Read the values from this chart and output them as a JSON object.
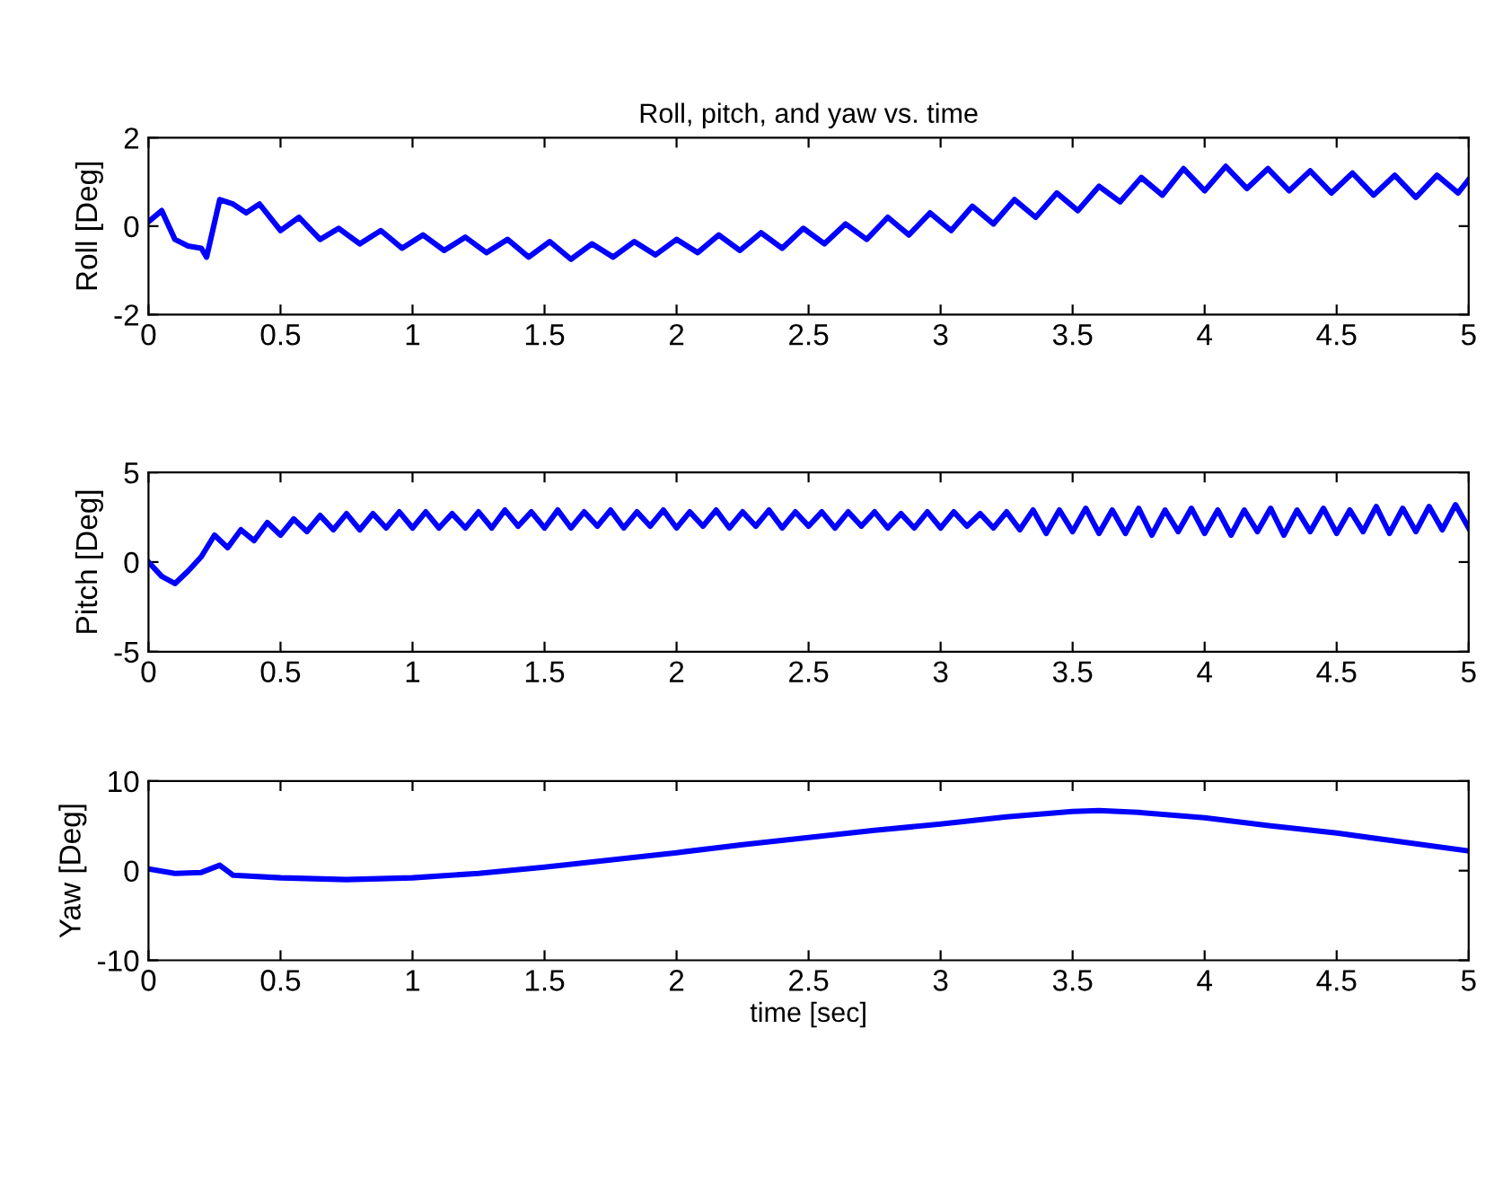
{
  "chart_data": [
    {
      "type": "line",
      "title": "Roll, pitch, and yaw vs. time",
      "ylabel": "Roll [Deg]",
      "xlim": [
        0,
        5
      ],
      "xticks": [
        0,
        0.5,
        1,
        1.5,
        2,
        2.5,
        3,
        3.5,
        4,
        4.5,
        5
      ],
      "ylim": [
        -2,
        2
      ],
      "yticks": [
        -2,
        0,
        2
      ],
      "grid": false,
      "legend": false,
      "series": [
        {
          "color": "#0000ff",
          "x": [
            0,
            0.05,
            0.1,
            0.15,
            0.2,
            0.22,
            0.27,
            0.32,
            0.37,
            0.42,
            0.5,
            0.57,
            0.65,
            0.72,
            0.8,
            0.88,
            0.96,
            1.04,
            1.12,
            1.2,
            1.28,
            1.36,
            1.44,
            1.52,
            1.6,
            1.68,
            1.76,
            1.84,
            1.92,
            2.0,
            2.08,
            2.16,
            2.24,
            2.32,
            2.4,
            2.48,
            2.56,
            2.64,
            2.72,
            2.8,
            2.88,
            2.96,
            3.04,
            3.12,
            3.2,
            3.28,
            3.36,
            3.44,
            3.52,
            3.6,
            3.68,
            3.76,
            3.84,
            3.92,
            4.0,
            4.08,
            4.16,
            4.24,
            4.32,
            4.4,
            4.48,
            4.56,
            4.64,
            4.72,
            4.8,
            4.88,
            4.96,
            5.0
          ],
          "values": [
            0.1,
            0.35,
            -0.3,
            -0.45,
            -0.5,
            -0.7,
            0.6,
            0.5,
            0.3,
            0.5,
            -0.1,
            0.2,
            -0.3,
            -0.05,
            -0.4,
            -0.1,
            -0.5,
            -0.2,
            -0.55,
            -0.25,
            -0.6,
            -0.3,
            -0.7,
            -0.35,
            -0.75,
            -0.4,
            -0.7,
            -0.35,
            -0.65,
            -0.3,
            -0.6,
            -0.2,
            -0.55,
            -0.15,
            -0.5,
            -0.05,
            -0.4,
            0.05,
            -0.3,
            0.2,
            -0.2,
            0.3,
            -0.1,
            0.45,
            0.05,
            0.6,
            0.2,
            0.75,
            0.35,
            0.9,
            0.55,
            1.1,
            0.7,
            1.3,
            0.8,
            1.35,
            0.85,
            1.3,
            0.8,
            1.25,
            0.75,
            1.2,
            0.7,
            1.15,
            0.65,
            1.15,
            0.75,
            1.05
          ]
        }
      ]
    },
    {
      "type": "line",
      "ylabel": "Pitch [Deg]",
      "xlim": [
        0,
        5
      ],
      "xticks": [
        0,
        0.5,
        1,
        1.5,
        2,
        2.5,
        3,
        3.5,
        4,
        4.5,
        5
      ],
      "ylim": [
        -5,
        5
      ],
      "yticks": [
        -5,
        0,
        5
      ],
      "grid": false,
      "legend": false,
      "series": [
        {
          "color": "#0000ff",
          "x": [
            0,
            0.05,
            0.1,
            0.15,
            0.2,
            0.25,
            0.3,
            0.35,
            0.4,
            0.45,
            0.5,
            0.55,
            0.6,
            0.65,
            0.7,
            0.75,
            0.8,
            0.85,
            0.9,
            0.95,
            1.0,
            1.05,
            1.1,
            1.15,
            1.2,
            1.25,
            1.3,
            1.35,
            1.4,
            1.45,
            1.5,
            1.55,
            1.6,
            1.65,
            1.7,
            1.75,
            1.8,
            1.85,
            1.9,
            1.95,
            2.0,
            2.05,
            2.1,
            2.15,
            2.2,
            2.25,
            2.3,
            2.35,
            2.4,
            2.45,
            2.5,
            2.55,
            2.6,
            2.65,
            2.7,
            2.75,
            2.8,
            2.85,
            2.9,
            2.95,
            3.0,
            3.05,
            3.1,
            3.15,
            3.2,
            3.25,
            3.3,
            3.35,
            3.4,
            3.45,
            3.5,
            3.55,
            3.6,
            3.65,
            3.7,
            3.75,
            3.8,
            3.85,
            3.9,
            3.95,
            4.0,
            4.05,
            4.1,
            4.15,
            4.2,
            4.25,
            4.3,
            4.35,
            4.4,
            4.45,
            4.5,
            4.55,
            4.6,
            4.65,
            4.7,
            4.75,
            4.8,
            4.85,
            4.9,
            4.95,
            5.0
          ],
          "values": [
            0,
            -0.8,
            -1.2,
            -0.5,
            0.3,
            1.5,
            0.8,
            1.8,
            1.2,
            2.2,
            1.5,
            2.4,
            1.7,
            2.6,
            1.8,
            2.7,
            1.8,
            2.7,
            1.9,
            2.8,
            1.9,
            2.8,
            1.9,
            2.7,
            1.9,
            2.8,
            1.9,
            2.9,
            2.0,
            2.8,
            1.9,
            2.9,
            1.9,
            2.8,
            2.0,
            2.9,
            1.9,
            2.8,
            2.0,
            2.9,
            1.9,
            2.8,
            2.0,
            2.9,
            1.9,
            2.8,
            2.0,
            2.9,
            1.9,
            2.8,
            2.0,
            2.8,
            1.9,
            2.8,
            2.0,
            2.8,
            1.9,
            2.7,
            1.9,
            2.8,
            1.9,
            2.8,
            2.0,
            2.7,
            1.9,
            2.8,
            1.8,
            2.9,
            1.6,
            2.9,
            1.7,
            3.0,
            1.6,
            2.9,
            1.6,
            3.0,
            1.5,
            2.9,
            1.7,
            3.0,
            1.6,
            2.9,
            1.5,
            2.9,
            1.7,
            3.0,
            1.5,
            2.9,
            1.7,
            3.0,
            1.6,
            2.9,
            1.7,
            3.1,
            1.6,
            3.0,
            1.7,
            3.1,
            1.8,
            3.2,
            1.9
          ]
        }
      ]
    },
    {
      "type": "line",
      "xlabel": "time [sec]",
      "ylabel": "Yaw [Deg]",
      "xlim": [
        0,
        5
      ],
      "xticks": [
        0,
        0.5,
        1,
        1.5,
        2,
        2.5,
        3,
        3.5,
        4,
        4.5,
        5
      ],
      "ylim": [
        -10,
        10
      ],
      "yticks": [
        -10,
        0,
        10
      ],
      "grid": false,
      "legend": false,
      "series": [
        {
          "color": "#0000ff",
          "x": [
            0,
            0.1,
            0.2,
            0.27,
            0.32,
            0.5,
            0.75,
            1.0,
            1.25,
            1.5,
            1.75,
            2.0,
            2.25,
            2.5,
            2.75,
            3.0,
            3.25,
            3.5,
            3.6,
            3.75,
            4.0,
            4.25,
            4.5,
            4.75,
            5.0
          ],
          "values": [
            0.2,
            -0.3,
            -0.2,
            0.6,
            -0.5,
            -0.8,
            -1.0,
            -0.8,
            -0.3,
            0.4,
            1.2,
            2.0,
            2.9,
            3.7,
            4.5,
            5.2,
            6.0,
            6.6,
            6.7,
            6.5,
            5.9,
            5.0,
            4.2,
            3.2,
            2.2
          ]
        }
      ]
    }
  ]
}
